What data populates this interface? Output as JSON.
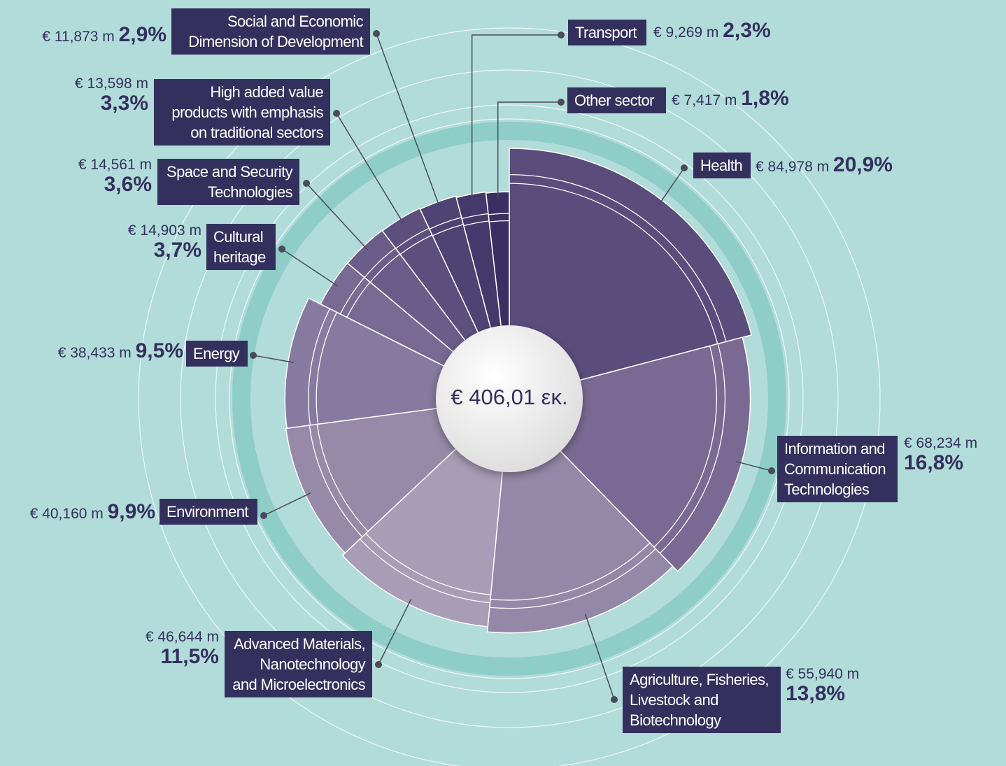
{
  "chart_data": {
    "type": "pie",
    "center_label": "€ 406,01 εκ.",
    "categories": [
      "Health",
      "Information and Communication Technologies",
      "Agriculture, Fisheries, Livestock and Biotechnology",
      "Advanced Materials, Nanotechnology and Microelectronics",
      "Environment",
      "Energy",
      "Cultural heritage",
      "Space and Security Technologies",
      "High added value products with emphasis on traditional sectors",
      "Social and Economic Dimension of Development",
      "Transport",
      "Other sector"
    ],
    "values": [
      84.978,
      68.234,
      55.94,
      46.644,
      40.16,
      38.433,
      14.903,
      14.561,
      13.598,
      11.873,
      9.269,
      7.417
    ],
    "value_labels": [
      "€ 84,978 m",
      "€ 68,234 m",
      "€ 55,940 m",
      "€ 46,644 m",
      "€ 40,160 m",
      "€ 38,433 m",
      "€ 14,903 m",
      "€ 14,561 m",
      "€ 13,598 m",
      "€ 11,873 m",
      "€ 9,269 m",
      "€ 7,417 m"
    ],
    "shares": [
      20.9,
      16.8,
      13.8,
      11.5,
      9.9,
      9.5,
      3.7,
      3.6,
      3.3,
      2.9,
      2.3,
      1.8
    ],
    "share_labels": [
      "20,9%",
      "16,8%",
      "13,8%",
      "11,5%",
      "9,9%",
      "9,5%",
      "3,7%",
      "3,6%",
      "3,3%",
      "2,9%",
      "2,3%",
      "1,8%"
    ],
    "colors": [
      "#5a4d7c",
      "#7a6a93",
      "#9488a8",
      "#a89cb6",
      "#978aa9",
      "#877aa0",
      "#786a93",
      "#6b5d89",
      "#5c4f7e",
      "#4f4374",
      "#44396b",
      "#3a2f62"
    ]
  }
}
